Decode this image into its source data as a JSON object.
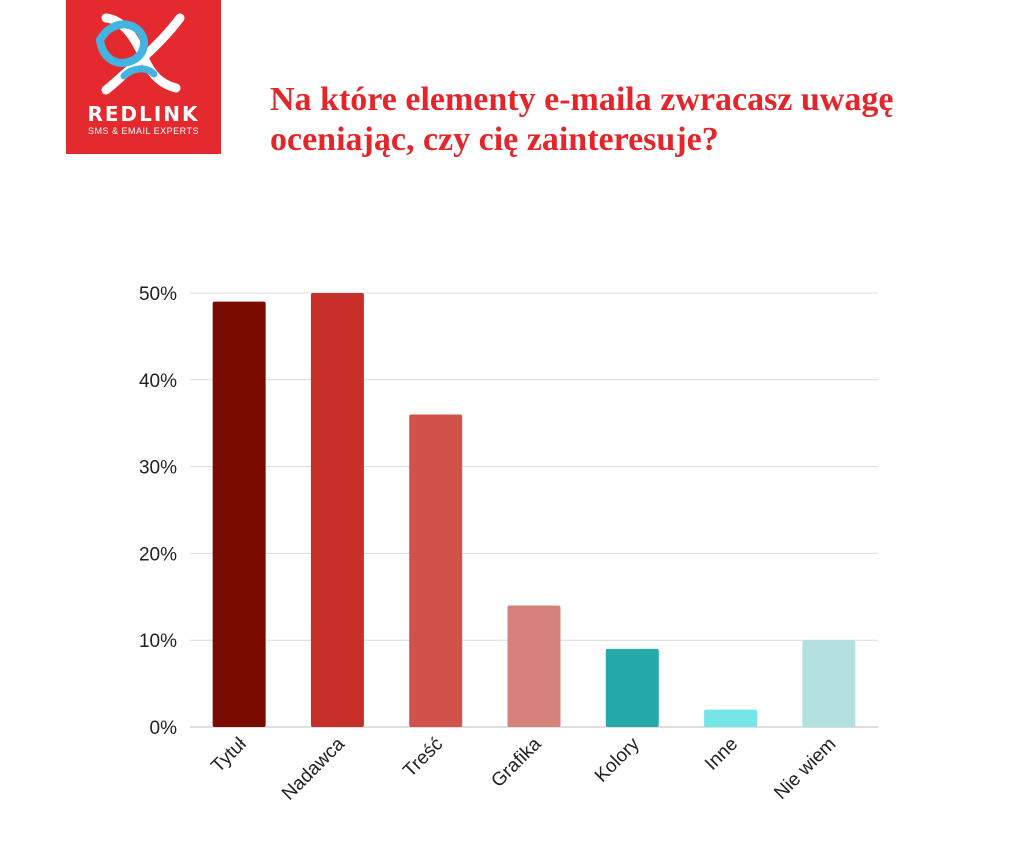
{
  "logo": {
    "name": "REDLINK",
    "tagline": "SMS & EMAIL EXPERTS"
  },
  "colors": {
    "brand_red": "#e52a2f",
    "title_red": "#e3262b"
  },
  "chart_data": {
    "type": "bar",
    "title": "Na które elementy e-maila zwracasz uwagę oceniając, czy cię zainteresuje?",
    "categories": [
      "Tytuł",
      "Nadawca",
      "Treść",
      "Grafika",
      "Kolory",
      "Inne",
      "Nie wiem"
    ],
    "values": [
      49,
      50,
      36,
      14,
      9,
      2,
      10
    ],
    "bar_colors": [
      "#7a0b00",
      "#c7302a",
      "#d0524b",
      "#d6817b",
      "#26aaa9",
      "#76e5e5",
      "#b2e0de"
    ],
    "ylim": [
      0,
      50
    ],
    "yticks": [
      0,
      10,
      20,
      30,
      40,
      50
    ],
    "ytick_labels": [
      "0%",
      "10%",
      "20%",
      "30%",
      "40%",
      "50%"
    ],
    "xlabel": "",
    "ylabel": "",
    "grid": true,
    "legend": "none"
  }
}
